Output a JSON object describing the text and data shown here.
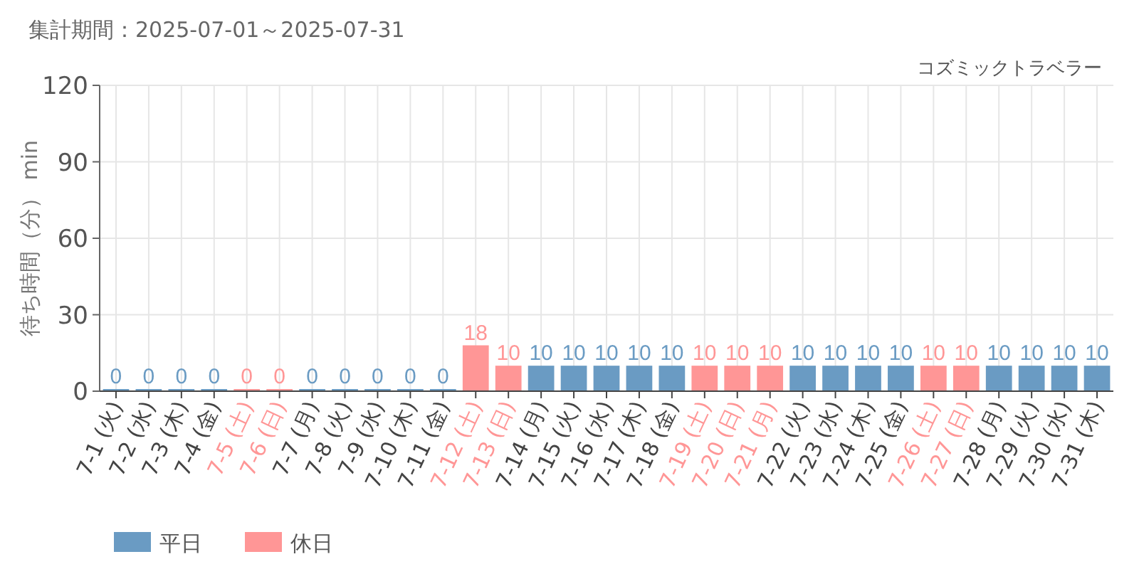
{
  "chart_data": {
    "type": "bar",
    "title": "集計期間：2025-07-01～2025-07-31",
    "subtitle": "コズミックトラベラー",
    "ylabel": "待ち時間（分） min",
    "categories": [
      "7-1 (火)",
      "7-2 (水)",
      "7-3 (木)",
      "7-4 (金)",
      "7-5 (土)",
      "7-6 (日)",
      "7-7 (月)",
      "7-8 (火)",
      "7-9 (水)",
      "7-10 (木)",
      "7-11 (金)",
      "7-12 (土)",
      "7-13 (日)",
      "7-14 (月)",
      "7-15 (火)",
      "7-16 (水)",
      "7-17 (木)",
      "7-18 (金)",
      "7-19 (土)",
      "7-20 (日)",
      "7-21 (月)",
      "7-22 (火)",
      "7-23 (水)",
      "7-24 (木)",
      "7-25 (金)",
      "7-26 (土)",
      "7-27 (日)",
      "7-28 (月)",
      "7-29 (火)",
      "7-30 (水)",
      "7-31 (木)"
    ],
    "stacked": true,
    "series": [
      {
        "name": "平日",
        "color": "#6a9bc3",
        "values": [
          0,
          0,
          0,
          0,
          null,
          null,
          0,
          0,
          0,
          0,
          0,
          null,
          null,
          10,
          10,
          10,
          10,
          10,
          null,
          null,
          null,
          10,
          10,
          10,
          10,
          null,
          null,
          10,
          10,
          10,
          10
        ]
      },
      {
        "name": "休日",
        "color": "#ff9696",
        "values": [
          null,
          null,
          null,
          null,
          0,
          0,
          null,
          null,
          null,
          null,
          null,
          18,
          10,
          null,
          null,
          null,
          null,
          null,
          10,
          10,
          10,
          null,
          null,
          null,
          null,
          10,
          10,
          null,
          null,
          null,
          null
        ]
      }
    ],
    "ylim": [
      0,
      120
    ],
    "yticks": [
      0,
      30,
      60,
      90,
      120
    ],
    "grid": true,
    "data_labels": true,
    "legend": "bottom left"
  }
}
